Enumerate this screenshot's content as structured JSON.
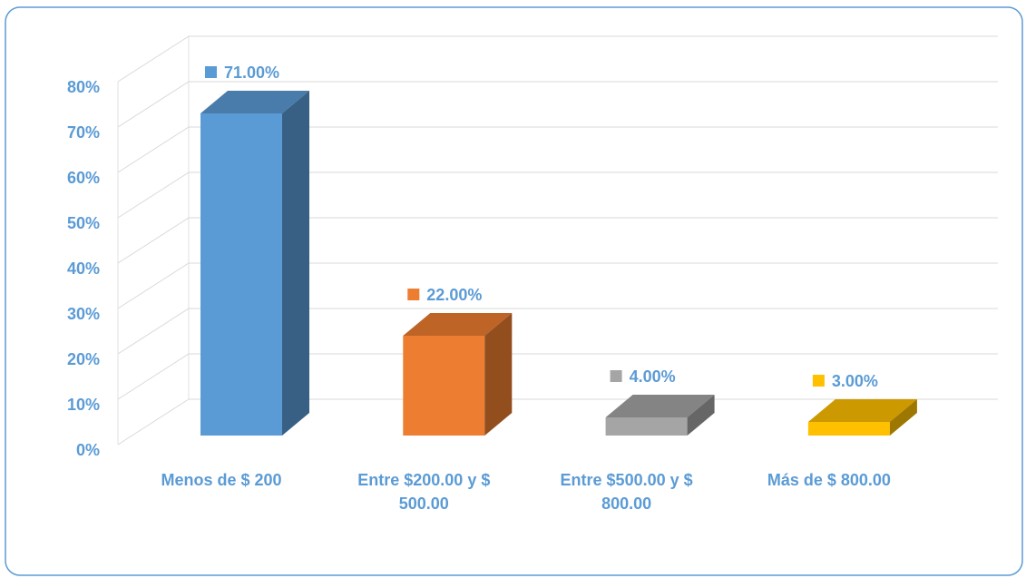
{
  "chart_data": {
    "type": "bar3d",
    "categories": [
      "Menos de $ 200",
      "Entre $200.00 y $ 500.00",
      "Entre $500.00 y $ 800.00",
      "Más de $ 800.00"
    ],
    "values": [
      71,
      22,
      4,
      3
    ],
    "value_labels": [
      "71.00%",
      "22.00%",
      "4.00%",
      "3.00%"
    ],
    "colors": [
      "#5b9bd5",
      "#ed7d31",
      "#a5a5a5",
      "#ffc000"
    ],
    "ylim": [
      0,
      80
    ],
    "yticks": [
      {
        "value": 0,
        "label": "0%"
      },
      {
        "value": 10,
        "label": "10%"
      },
      {
        "value": 20,
        "label": "20%"
      },
      {
        "value": 30,
        "label": "30%"
      },
      {
        "value": 40,
        "label": "40%"
      },
      {
        "value": 50,
        "label": "50%"
      },
      {
        "value": 60,
        "label": "60%"
      },
      {
        "value": 70,
        "label": "70%"
      },
      {
        "value": 80,
        "label": "80%"
      }
    ],
    "grid": true
  }
}
